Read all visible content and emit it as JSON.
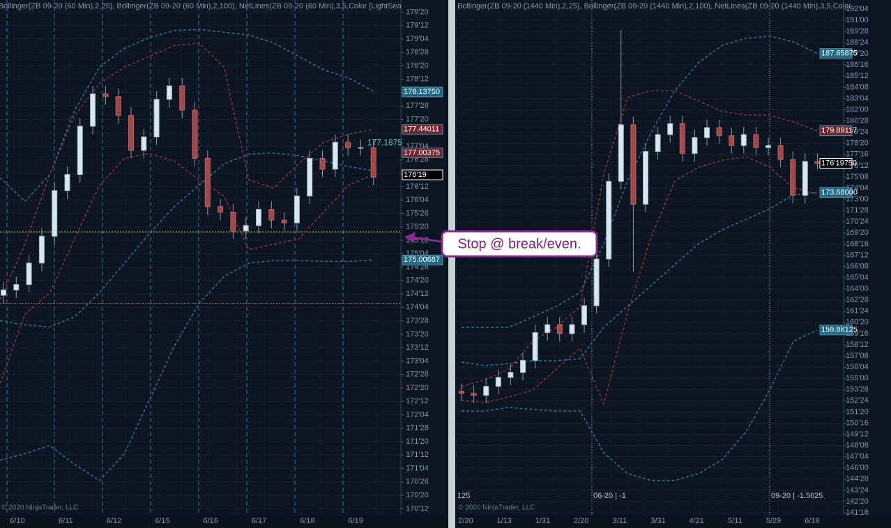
{
  "chart_data": [
    {
      "type": "candlestick",
      "title": "Bollinger(ZB 09-20 (60 Min),2,25), Bollinger(ZB 09-20 (60 Min),2,100), NetLines(ZB 09-20 (60 Min),3,5,Color [LightSea",
      "copyright": "© 2020 NinjaTrader, LLC",
      "x_labels": [
        "6/10",
        "6/11",
        "6/12",
        "6/15",
        "6/16",
        "6/17",
        "6/18",
        "6/19"
      ],
      "candles": {
        "open": [
          174.35,
          174.45,
          174.55,
          174.95,
          175.45,
          176.3,
          176.6,
          177.5,
          178.1,
          178.05,
          177.7,
          177.05,
          177.3,
          178.0,
          178.25,
          177.8,
          176.9,
          176.0,
          175.9,
          175.55,
          175.65,
          175.95,
          175.75,
          175.7,
          176.2,
          176.9,
          176.7,
          177.2,
          177.1,
          177.1
        ],
        "high": [
          174.6,
          174.7,
          175.1,
          175.6,
          176.45,
          176.75,
          177.65,
          178.25,
          178.25,
          178.2,
          177.85,
          177.45,
          178.15,
          178.4,
          178.4,
          177.95,
          177.05,
          176.15,
          176.05,
          175.8,
          176.1,
          176.1,
          175.9,
          176.35,
          177.05,
          177.05,
          177.35,
          177.35,
          177.25,
          177.25
        ],
        "low": [
          174.2,
          174.3,
          174.4,
          174.8,
          175.3,
          176.15,
          176.45,
          177.35,
          177.9,
          177.55,
          176.9,
          176.9,
          177.15,
          177.85,
          177.65,
          176.75,
          175.85,
          175.75,
          175.4,
          175.4,
          175.5,
          175.6,
          175.55,
          175.55,
          176.05,
          176.55,
          176.55,
          176.95,
          176.95,
          176.4
        ],
        "close": [
          174.45,
          174.55,
          174.95,
          175.45,
          176.3,
          176.6,
          177.5,
          178.1,
          178.05,
          177.7,
          177.05,
          177.3,
          178.0,
          178.25,
          177.8,
          176.9,
          176.0,
          175.9,
          175.55,
          175.65,
          175.95,
          175.75,
          175.7,
          176.2,
          176.9,
          176.7,
          177.2,
          177.1,
          177.1,
          176.55
        ]
      },
      "series": [
        {
          "color": "#2f6f95",
          "values": [
            176.54,
            176.1,
            176.6,
            177.8,
            178.6,
            178.95,
            179.15,
            179.28,
            179.3,
            179.25,
            179.2,
            179.05,
            178.8,
            178.55,
            178.4,
            178.15
          ]
        },
        {
          "color": "#2f6f95",
          "values": [
            173.88,
            173.8,
            173.76,
            173.95,
            174.4,
            174.95,
            175.5,
            176.0,
            176.4,
            176.8,
            176.98,
            177.0,
            176.95,
            176.85,
            176.75,
            176.67
          ]
        },
        {
          "color": "#2f6f95",
          "values": [
            171.28,
            171.4,
            171.55,
            171.2,
            170.9,
            171.4,
            172.4,
            173.4,
            174.2,
            174.7,
            174.95,
            175.0,
            175.0,
            174.98,
            174.98,
            175.01
          ]
        },
        {
          "color": "#8a2f3a",
          "values": [
            174.27,
            175.3,
            176.6,
            177.7,
            178.3,
            178.6,
            178.8,
            179.0,
            179.05,
            178.6,
            176.5,
            176.35,
            176.8,
            177.2,
            177.35,
            177.44
          ]
        },
        {
          "color": "#8a2f3a",
          "values": [
            172.71,
            174.0,
            174.4,
            175.4,
            176.4,
            176.9,
            176.99,
            176.85,
            176.5,
            176.2,
            175.2,
            175.3,
            175.4,
            175.9,
            176.4,
            176.6
          ]
        }
      ],
      "hlines": [
        {
          "value": 175.53,
          "color": "#b8d84a"
        },
        {
          "value": 174.2,
          "color": "#c05050"
        }
      ],
      "price_markers": [
        {
          "value": 178.1375,
          "label": "178.13750",
          "color": "#1f6a86"
        },
        {
          "value": 177.44011,
          "label": "177.44011",
          "color": "#6e2730"
        },
        {
          "value": 177.00375,
          "label": "177.00375",
          "color": "#6e2730"
        },
        {
          "value": 176.59375,
          "label": "176'19",
          "color": "#000000"
        },
        {
          "value": 175.00687,
          "label": "175.00687",
          "color": "#1f6a86"
        }
      ],
      "annotation": {
        "value": 177.1875,
        "label": "177.1875"
      },
      "ylim": [
        170.25,
        179.85
      ],
      "yticks": [
        {
          "value": 179.625,
          "label": "179'20"
        },
        {
          "value": 179.375,
          "label": "179'12"
        },
        {
          "value": 179.125,
          "label": "179'04"
        },
        {
          "value": 178.875,
          "label": "178'28"
        },
        {
          "value": 178.625,
          "label": "178'20"
        },
        {
          "value": 178.375,
          "label": "178'12"
        },
        {
          "value": 178.125,
          "label": "178'04"
        },
        {
          "value": 177.875,
          "label": "177'28"
        },
        {
          "value": 177.625,
          "label": "177'20"
        },
        {
          "value": 177.375,
          "label": "177'12"
        },
        {
          "value": 177.125,
          "label": "177'04"
        },
        {
          "value": 176.875,
          "label": "176'28"
        },
        {
          "value": 176.625,
          "label": "176'20"
        },
        {
          "value": 176.375,
          "label": "176'12"
        },
        {
          "value": 176.125,
          "label": "176'04"
        },
        {
          "value": 175.875,
          "label": "175'28"
        },
        {
          "value": 175.625,
          "label": "175'20"
        },
        {
          "value": 175.375,
          "label": "175'12"
        },
        {
          "value": 175.125,
          "label": "175'04"
        },
        {
          "value": 174.875,
          "label": "174'28"
        },
        {
          "value": 174.625,
          "label": "174'20"
        },
        {
          "value": 174.375,
          "label": "174'12"
        },
        {
          "value": 174.125,
          "label": "174'04"
        },
        {
          "value": 173.875,
          "label": "173'28"
        },
        {
          "value": 173.625,
          "label": "173'20"
        },
        {
          "value": 173.375,
          "label": "173'12"
        },
        {
          "value": 173.125,
          "label": "173'04"
        },
        {
          "value": 172.875,
          "label": "172'28"
        },
        {
          "value": 172.625,
          "label": "172'20"
        },
        {
          "value": 172.375,
          "label": "172'12"
        },
        {
          "value": 172.125,
          "label": "172'04"
        },
        {
          "value": 171.875,
          "label": "171'28"
        },
        {
          "value": 171.625,
          "label": "171'20"
        },
        {
          "value": 171.375,
          "label": "171'12"
        },
        {
          "value": 171.125,
          "label": "171'04"
        },
        {
          "value": 170.875,
          "label": "170'28"
        },
        {
          "value": 170.625,
          "label": "170'20"
        },
        {
          "value": 170.375,
          "label": "170'12"
        }
      ]
    },
    {
      "type": "candlestick",
      "title": "Bollinger(ZB 09-20 (1440 Min),2,25), Bollinger(ZB 09-20 (1440 Min),2,100), NetLines(ZB 09-20 (1440 Min),3,5,Color",
      "copyright": "© 2020 NinjaTrader, LLC",
      "corner_label": "125",
      "rollovers": [
        "06-20 | -1",
        "09-20 | -1.5625"
      ],
      "x_labels": [
        "2/20",
        "1/13",
        "1/31",
        "2/20",
        "3/11",
        "3/31",
        "4/21",
        "5/11",
        "5/29",
        "6/18"
      ],
      "candles": {
        "open": [
          153.7,
          153.5,
          153.3,
          154.2,
          155.1,
          155.6,
          156.8,
          159.6,
          160.4,
          159.5,
          160.4,
          162.3,
          167.0,
          174.8,
          180.5,
          172.5,
          177.8,
          179.5,
          180.6,
          177.6,
          179.2,
          180.2,
          179.4,
          178.4,
          179.5,
          178.2,
          178.4,
          177.0,
          173.4,
          176.8
        ],
        "high": [
          154.5,
          154.3,
          155.0,
          155.9,
          156.4,
          157.6,
          160.4,
          161.2,
          161.2,
          161.2,
          163.1,
          167.8,
          175.6,
          190.0,
          181.3,
          178.6,
          180.3,
          181.4,
          181.4,
          180.0,
          181.0,
          181.0,
          180.2,
          180.3,
          180.3,
          179.2,
          179.2,
          177.8,
          177.6,
          177.6
        ],
        "low": [
          152.7,
          152.5,
          152.5,
          153.4,
          154.3,
          154.8,
          156.0,
          158.8,
          158.7,
          158.7,
          159.6,
          161.5,
          166.2,
          174.0,
          165.7,
          171.7,
          177.0,
          178.7,
          176.8,
          176.8,
          178.4,
          178.6,
          177.6,
          177.6,
          177.4,
          177.4,
          176.2,
          172.6,
          172.6,
          176.0
        ],
        "close": [
          153.5,
          153.3,
          154.2,
          155.1,
          155.6,
          156.8,
          159.6,
          160.4,
          159.5,
          160.4,
          162.3,
          167.0,
          174.8,
          180.5,
          172.5,
          177.8,
          179.5,
          180.6,
          177.6,
          179.2,
          180.2,
          179.4,
          178.4,
          179.5,
          178.2,
          178.4,
          177.0,
          173.4,
          176.8,
          176.6
        ]
      },
      "series": [
        {
          "color": "#2f6f95",
          "values": [
            160.13,
            160.13,
            160.13,
            161.18,
            162.23,
            163.63,
            168.53,
            174.83,
            179.73,
            183.93,
            186.73,
            188.48,
            189.18,
            189.39,
            188.83,
            187.66
          ]
        },
        {
          "color": "#2f6f95",
          "values": [
            156.63,
            156.28,
            156.49,
            156.77,
            156.77,
            156.98,
            160.13,
            162.23,
            164.33,
            166.43,
            168.53,
            169.93,
            170.98,
            172.03,
            173.43,
            173.68
          ]
        },
        {
          "color": "#2f6f95",
          "values": [
            151.73,
            151.73,
            152.08,
            151.87,
            151.73,
            151.73,
            147.53,
            145.43,
            144.73,
            144.73,
            145.43,
            146.83,
            149.63,
            153.83,
            158.73,
            159.86
          ]
        },
        {
          "color": "#8a2f3a",
          "values": [
            154.18,
            154.88,
            155.93,
            158.73,
            160.13,
            162.23,
            175.53,
            183.23,
            183.93,
            183.93,
            182.88,
            181.83,
            181.48,
            181.48,
            180.78,
            179.89
          ]
        },
        {
          "color": "#8a2f3a",
          "values": [
            152.78,
            152.57,
            153.13,
            153.83,
            155.93,
            158.03,
            152.43,
            161.53,
            169.23,
            174.83,
            176.23,
            176.93,
            177.28,
            176.23,
            174.13,
            173.57
          ]
        }
      ],
      "price_markers": [
        {
          "value": 187.65875,
          "label": "187.65875",
          "color": "#1f6a86"
        },
        {
          "value": 179.89117,
          "label": "179.89117",
          "color": "#6e2730"
        },
        {
          "value": 176.6171875,
          "label": "176'19750",
          "color": "#000000"
        },
        {
          "value": 173.68,
          "label": "173.68000",
          "color": "#1f6a86"
        },
        {
          "value": 159.86125,
          "label": "159.86125",
          "color": "#1f6a86"
        }
      ],
      "ylim": [
        141.22,
        193.03
      ],
      "yticks": [
        {
          "value": 192.125,
          "label": "192'04"
        },
        {
          "value": 191.0,
          "label": "191'00"
        },
        {
          "value": 189.875,
          "label": "189'28"
        },
        {
          "value": 188.75,
          "label": "188'24"
        },
        {
          "value": 187.625,
          "label": "187'20"
        },
        {
          "value": 186.5,
          "label": "186'16"
        },
        {
          "value": 185.375,
          "label": "185'12"
        },
        {
          "value": 184.25,
          "label": "184'08"
        },
        {
          "value": 183.125,
          "label": "183'04"
        },
        {
          "value": 182.0,
          "label": "182'00"
        },
        {
          "value": 180.875,
          "label": "180'28"
        },
        {
          "value": 179.75,
          "label": "179'24"
        },
        {
          "value": 178.625,
          "label": "178'20"
        },
        {
          "value": 177.5,
          "label": "177'16"
        },
        {
          "value": 176.375,
          "label": "176'12"
        },
        {
          "value": 175.25,
          "label": "175'08"
        },
        {
          "value": 174.125,
          "label": "174'04"
        },
        {
          "value": 173.0,
          "label": "173'00"
        },
        {
          "value": 171.875,
          "label": "171'28"
        },
        {
          "value": 170.75,
          "label": "170'24"
        },
        {
          "value": 169.625,
          "label": "169'20"
        },
        {
          "value": 168.5,
          "label": "168'16"
        },
        {
          "value": 167.375,
          "label": "167'12"
        },
        {
          "value": 166.25,
          "label": "166'08"
        },
        {
          "value": 165.125,
          "label": "165'04"
        },
        {
          "value": 164.0,
          "label": "164'00"
        },
        {
          "value": 162.875,
          "label": "162'28"
        },
        {
          "value": 161.75,
          "label": "161'24"
        },
        {
          "value": 160.625,
          "label": "160'20"
        },
        {
          "value": 159.5,
          "label": "159'16"
        },
        {
          "value": 158.375,
          "label": "158'12"
        },
        {
          "value": 157.25,
          "label": "157'08"
        },
        {
          "value": 156.125,
          "label": "156'04"
        },
        {
          "value": 155.0,
          "label": "155'00"
        },
        {
          "value": 153.875,
          "label": "153'28"
        },
        {
          "value": 152.75,
          "label": "152'24"
        },
        {
          "value": 151.625,
          "label": "151'20"
        },
        {
          "value": 150.5,
          "label": "150'16"
        },
        {
          "value": 149.375,
          "label": "149'12"
        },
        {
          "value": 148.25,
          "label": "148'08"
        },
        {
          "value": 147.125,
          "label": "147'04"
        },
        {
          "value": 146.0,
          "label": "146'00"
        },
        {
          "value": 144.875,
          "label": "144'28"
        },
        {
          "value": 143.75,
          "label": "143'24"
        },
        {
          "value": 142.625,
          "label": "142'20"
        },
        {
          "value": 141.5,
          "label": "141'16"
        }
      ]
    }
  ],
  "callout": "Stop @ break/even."
}
